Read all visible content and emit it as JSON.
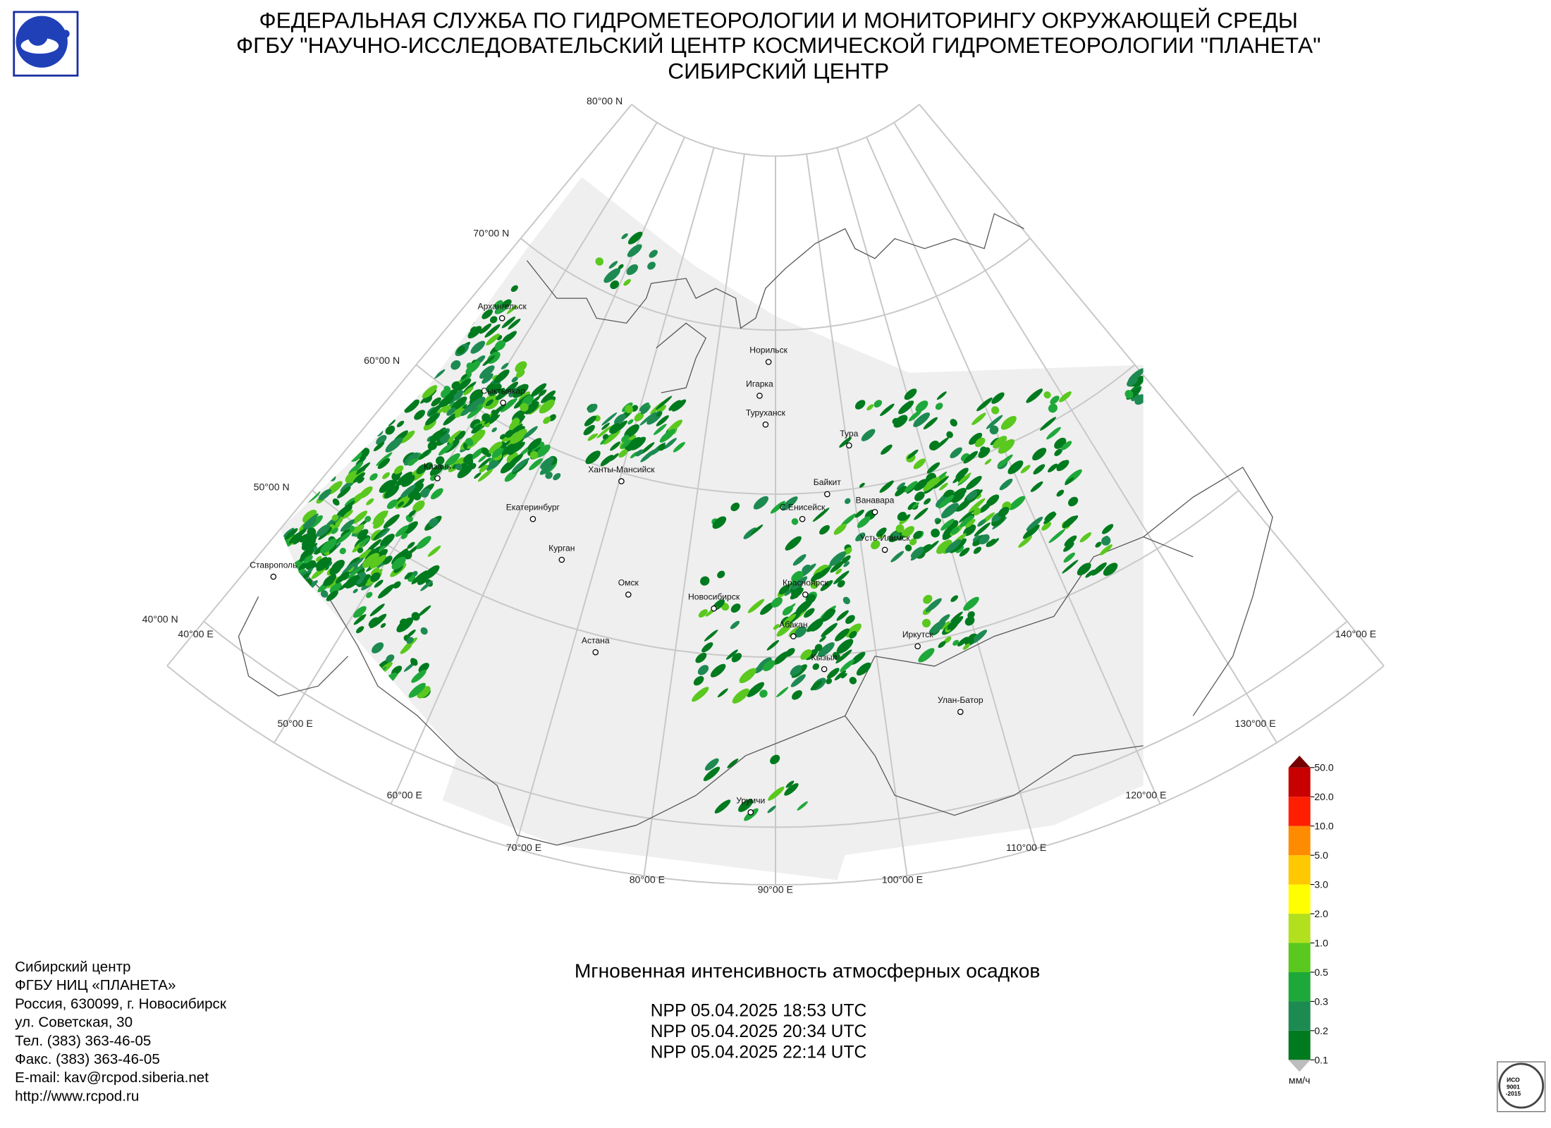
{
  "header": {
    "lines": [
      "ФЕДЕРАЛЬНАЯ СЛУЖБА ПО ГИДРОМЕТЕОРОЛОГИИ И МОНИТОРИНГУ ОКРУЖАЮЩЕЙ СРЕДЫ",
      "ФГБУ \"НАУЧНО-ИССЛЕДОВАТЕЛЬСКИЙ ЦЕНТР КОСМИЧЕСКОЙ ГИДРОМЕТЕОРОЛОГИИ \"ПЛАНЕТА\"",
      "СИБИРСКИЙ ЦЕНТР"
    ]
  },
  "map": {
    "parallels": [
      "80°00 N",
      "70°00 N",
      "60°00 N",
      "50°00 N",
      "40°00 N"
    ],
    "meridians": [
      "40°00 E",
      "50°00 E",
      "60°00 E",
      "70°00 E",
      "80°00 E",
      "90°00 E",
      "100°00 E",
      "110°00 E",
      "120°00 E",
      "130°00 E",
      "140°00 E"
    ],
    "cities": [
      "Архангельск",
      "Сыктывкар",
      "Казань",
      "Ханты-Мансийск",
      "Екатеринбург",
      "Курган",
      "Ставрополь",
      "Омск",
      "Новосибирск",
      "Астана",
      "Норильск",
      "Игарка",
      "Туруханск",
      "Тура",
      "Байкит",
      "С.Енисейск",
      "Ванавара",
      "Усть-Илимск",
      "Красноярск",
      "Абакан",
      "Кызыл",
      "Иркутск",
      "Улан-Батор",
      "Урумчи"
    ]
  },
  "legend": {
    "unit": "мм/ч",
    "levels": [
      0.1,
      0.2,
      0.3,
      0.5,
      {
        "value": 1,
        "label": "1.0"
      },
      {
        "value": 2,
        "label": "2.0"
      },
      {
        "value": 3,
        "label": "3.0"
      },
      {
        "value": 5,
        "label": "5.0"
      },
      {
        "value": 10,
        "label": "10.0"
      },
      {
        "value": 20,
        "label": "20.0"
      },
      {
        "value": 50,
        "label": "50.0"
      }
    ],
    "colors": [
      "#007a1e",
      "#1d8a52",
      "#1fa83a",
      "#5ac81e",
      "#b2e01e",
      "#ffff00",
      "#ffc800",
      "#ff8c00",
      "#ff1e00",
      "#c80000"
    ],
    "over_color": "#760000",
    "under_color": "#bdbdbd"
  },
  "product": {
    "title": "Мгновенная интенсивность атмосферных осадков",
    "passes": [
      "NPP 05.04.2025  18:53 UTC",
      "NPP 05.04.2025  20:34 UTC",
      "NPP 05.04.2025  22:14 UTC"
    ]
  },
  "contact": {
    "lines": [
      "Сибирский центр",
      "ФГБУ НИЦ «ПЛАНЕТА»",
      "Россия, 630099, г. Новосибирск",
      "ул. Советская, 30",
      "Тел. (383) 363-46-05",
      "Факс. (383) 363-46-05",
      "E-mail: kav@rcpod.siberia.net",
      "http://www.rcpod.ru"
    ]
  },
  "certification": {
    "lines": [
      "ИСО",
      "9001",
      "-2015"
    ]
  }
}
